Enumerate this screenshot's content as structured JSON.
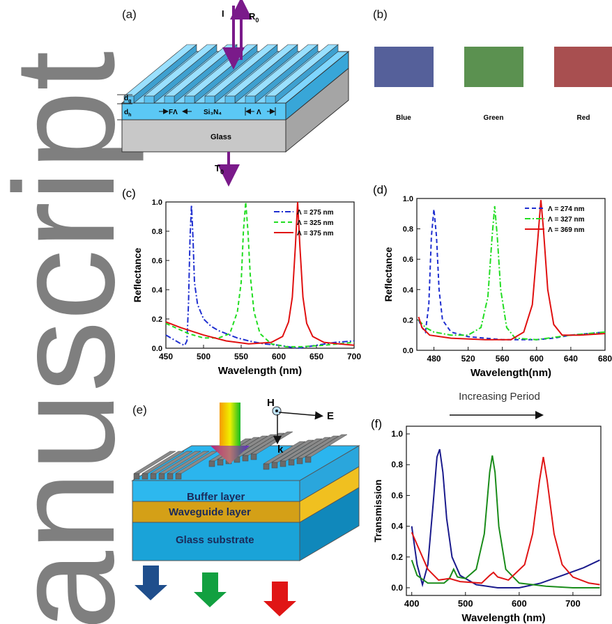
{
  "watermark": "anuscript",
  "panel_a": {
    "label": "(a)",
    "incident": "I",
    "reflected": {
      "main": "R",
      "sub": "0"
    },
    "transmitted": {
      "main": "T",
      "sub": "0"
    },
    "grating_depth": {
      "main": "d",
      "sub": "g"
    },
    "layer_depth": {
      "main": "d",
      "sub": "h"
    },
    "fill_factor": "FΛ",
    "period": "Λ",
    "core": "Si₃N₄",
    "substrate": "Glass"
  },
  "panel_b": {
    "label": "(b)",
    "swatches": [
      {
        "name": "Blue",
        "color": "#55609a"
      },
      {
        "name": "Green",
        "color": "#5b9150"
      },
      {
        "name": "Red",
        "color": "#a84f50"
      }
    ]
  },
  "panel_e": {
    "label": "(e)",
    "h_field": "H",
    "e_field": "E",
    "k_vector": "k",
    "buffer": "Buffer layer",
    "waveguide": "Waveguide layer",
    "glass": "Glass substrate"
  },
  "chart_data": [
    {
      "type": "line",
      "panel_label": "(c)",
      "x_label": "Wavelength (nm)",
      "y_label": "Reflectance",
      "legend": "upper right",
      "xlim": [
        450,
        700
      ],
      "xticks": [
        450,
        500,
        550,
        600,
        650,
        700
      ],
      "ylim": [
        0,
        1.0
      ],
      "yticks": [
        {
          "value": 0,
          "label": "0.0"
        },
        0.2,
        0.4,
        0.6,
        0.8,
        {
          "value": 1.0,
          "label": "1.0"
        }
      ],
      "series": [
        {
          "name": "Λ = 275 nm",
          "color": "#1f2fd0",
          "dash": "dashdot",
          "x": [
            450,
            460,
            470,
            475,
            478,
            480,
            482,
            484,
            486,
            488,
            492,
            500,
            510,
            520,
            530,
            545,
            560,
            580,
            600,
            625,
            650,
            675,
            700
          ],
          "values": [
            0.09,
            0.06,
            0.03,
            0.02,
            0.05,
            0.3,
            0.75,
            0.98,
            0.75,
            0.45,
            0.3,
            0.2,
            0.15,
            0.12,
            0.1,
            0.07,
            0.05,
            0.03,
            0.02,
            0.0,
            0.02,
            0.04,
            0.05
          ]
        },
        {
          "name": "Λ = 325 nm",
          "color": "#22dd22",
          "dash": "dashed",
          "x": [
            450,
            480,
            500,
            520,
            535,
            545,
            550,
            553,
            556,
            559,
            562,
            567,
            575,
            590,
            610,
            630,
            660,
            700
          ],
          "values": [
            0.17,
            0.1,
            0.07,
            0.07,
            0.1,
            0.25,
            0.45,
            0.8,
            1.0,
            0.8,
            0.5,
            0.25,
            0.1,
            0.03,
            0.01,
            0.01,
            0.02,
            0.04
          ]
        },
        {
          "name": "Λ = 375 nm",
          "color": "#e01010",
          "dash": "solid",
          "x": [
            450,
            470,
            500,
            530,
            560,
            590,
            605,
            613,
            618,
            622,
            625,
            628,
            632,
            637,
            645,
            660,
            680,
            700
          ],
          "values": [
            0.18,
            0.14,
            0.09,
            0.05,
            0.03,
            0.04,
            0.08,
            0.18,
            0.35,
            0.7,
            1.0,
            0.7,
            0.35,
            0.17,
            0.08,
            0.04,
            0.03,
            0.02
          ]
        }
      ]
    },
    {
      "type": "line",
      "panel_label": "(d)",
      "x_label": "Wavelength(nm)",
      "y_label": "Reflectance",
      "legend": "upper right",
      "xlim": [
        460,
        680
      ],
      "xticks": [
        480,
        520,
        560,
        600,
        640,
        680
      ],
      "ylim": [
        0,
        1.0
      ],
      "yticks": [
        {
          "value": 0,
          "label": "0.0"
        },
        0.2,
        0.4,
        0.6,
        0.8,
        {
          "value": 1.0,
          "label": "1.0"
        }
      ],
      "series": [
        {
          "name": "Λ = 274 nm",
          "color": "#1f2fd0",
          "dash": "dashed",
          "x": [
            462,
            466,
            470,
            474,
            477,
            480,
            483,
            486,
            490,
            500,
            520,
            540,
            560,
            580,
            600,
            620,
            640,
            660,
            680
          ],
          "values": [
            0.2,
            0.15,
            0.12,
            0.3,
            0.75,
            0.93,
            0.75,
            0.4,
            0.2,
            0.12,
            0.09,
            0.08,
            0.07,
            0.07,
            0.07,
            0.08,
            0.1,
            0.11,
            0.12
          ]
        },
        {
          "name": "Λ = 327 nm",
          "color": "#22dd22",
          "dash": "dashdot",
          "x": [
            462,
            470,
            480,
            500,
            520,
            535,
            543,
            548,
            551,
            554,
            558,
            565,
            575,
            600,
            640,
            680
          ],
          "values": [
            0.2,
            0.15,
            0.12,
            0.1,
            0.1,
            0.15,
            0.35,
            0.75,
            0.95,
            0.75,
            0.4,
            0.15,
            0.08,
            0.07,
            0.1,
            0.12
          ]
        },
        {
          "name": "Λ = 369 nm",
          "color": "#e01010",
          "dash": "solid",
          "x": [
            462,
            466,
            475,
            500,
            540,
            570,
            585,
            595,
            601,
            605,
            608,
            613,
            620,
            630,
            650,
            680
          ],
          "values": [
            0.22,
            0.15,
            0.1,
            0.08,
            0.07,
            0.07,
            0.12,
            0.3,
            0.7,
            0.99,
            0.8,
            0.4,
            0.17,
            0.1,
            0.1,
            0.11
          ]
        }
      ]
    },
    {
      "type": "line",
      "panel_label": "(f)",
      "x_label": "Wavelength (nm)",
      "y_label": "Transmission",
      "annotation": "Increasing Period",
      "xlim": [
        390,
        752
      ],
      "xticks": [
        400,
        500,
        600,
        700
      ],
      "ylim": [
        -0.05,
        1.05
      ],
      "yticks": [
        {
          "value": 0,
          "label": "0.0"
        },
        0.2,
        0.4,
        0.6,
        0.8,
        {
          "value": 1.0,
          "label": "1.0"
        }
      ],
      "series": [
        {
          "color": "#1a1a8c",
          "dash": "solid",
          "x": [
            400,
            410,
            420,
            430,
            440,
            447,
            452,
            458,
            465,
            475,
            490,
            520,
            560,
            600,
            640,
            680,
            720,
            750
          ],
          "values": [
            0.4,
            0.15,
            0.02,
            0.15,
            0.55,
            0.85,
            0.9,
            0.75,
            0.45,
            0.2,
            0.08,
            0.02,
            0.0,
            0.0,
            0.03,
            0.08,
            0.13,
            0.18
          ]
        },
        {
          "color": "#1a8c1a",
          "dash": "solid",
          "x": [
            400,
            410,
            430,
            460,
            470,
            478,
            485,
            500,
            520,
            535,
            545,
            550,
            555,
            562,
            575,
            600,
            650,
            700,
            750
          ],
          "values": [
            0.18,
            0.08,
            0.03,
            0.03,
            0.06,
            0.12,
            0.07,
            0.06,
            0.12,
            0.35,
            0.75,
            0.86,
            0.75,
            0.4,
            0.12,
            0.03,
            0.01,
            0.0,
            0.0
          ]
        },
        {
          "color": "#e01515",
          "dash": "solid",
          "x": [
            400,
            410,
            430,
            450,
            470,
            490,
            530,
            545,
            552,
            560,
            580,
            610,
            625,
            638,
            645,
            652,
            665,
            680,
            700,
            730,
            750
          ],
          "values": [
            0.36,
            0.28,
            0.12,
            0.05,
            0.06,
            0.04,
            0.03,
            0.08,
            0.1,
            0.07,
            0.05,
            0.15,
            0.35,
            0.7,
            0.85,
            0.7,
            0.35,
            0.15,
            0.07,
            0.03,
            0.02
          ]
        }
      ]
    }
  ]
}
